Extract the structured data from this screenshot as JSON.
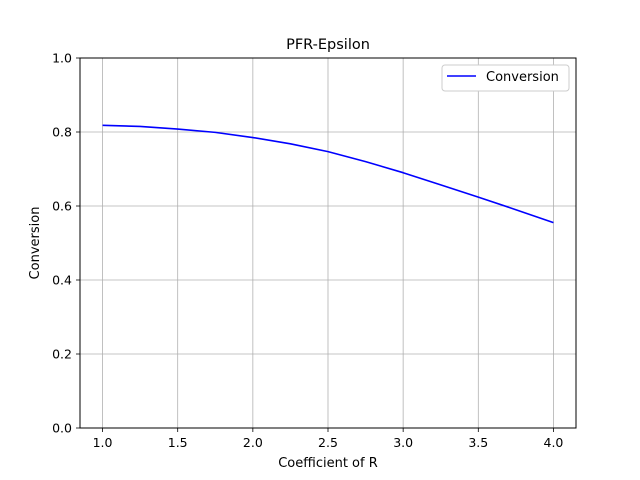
{
  "chart_data": {
    "type": "line",
    "title": "PFR-Epsilon",
    "xlabel": "Coefficient of R",
    "ylabel": "Conversion",
    "xlim": [
      0.85,
      4.15
    ],
    "ylim": [
      0.0,
      1.0
    ],
    "xticks": [
      1.0,
      1.5,
      2.0,
      2.5,
      3.0,
      3.5,
      4.0
    ],
    "xtick_labels": [
      "1.0",
      "1.5",
      "2.0",
      "2.5",
      "3.0",
      "3.5",
      "4.0"
    ],
    "yticks": [
      0.0,
      0.2,
      0.4,
      0.6,
      0.8,
      1.0
    ],
    "ytick_labels": [
      "0.0",
      "0.2",
      "0.4",
      "0.6",
      "0.8",
      "1.0"
    ],
    "grid": true,
    "legend_position": "top-right",
    "series": [
      {
        "name": "Conversion",
        "color": "#0000ff",
        "x": [
          1.0,
          1.25,
          1.5,
          1.75,
          2.0,
          2.25,
          2.5,
          2.75,
          3.0,
          3.25,
          3.5,
          3.75,
          4.0
        ],
        "y": [
          0.818,
          0.815,
          0.808,
          0.799,
          0.785,
          0.768,
          0.747,
          0.72,
          0.69,
          0.657,
          0.624,
          0.59,
          0.555
        ]
      }
    ]
  }
}
